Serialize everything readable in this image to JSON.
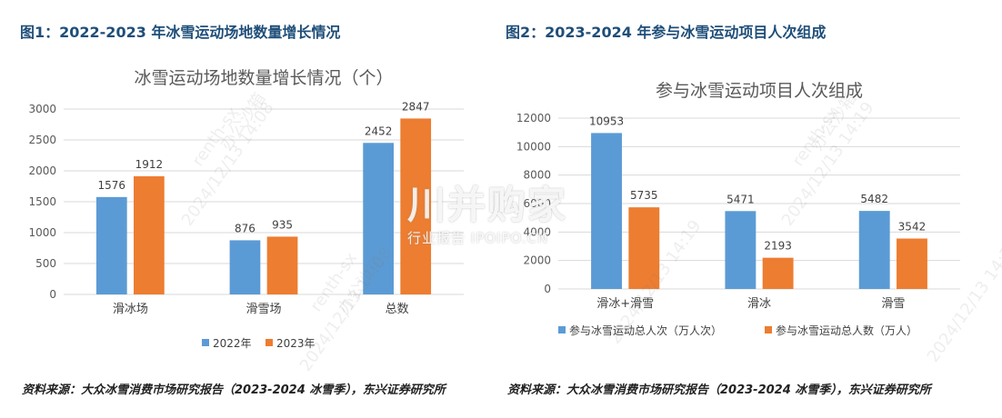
{
  "figures": {
    "fig1_title": "图1：2022-2023 年冰雪运动场地数量增长情况",
    "fig2_title": "图2：2023-2024 年参与冰雪运动项目人次组成",
    "source1": "资料来源：大众冰雪消费市场研究报告（2023-2024 冰雪季），东兴证券研究所",
    "source2": "资料来源：大众冰雪消费市场研究报告（2023-2024 冰雪季），东兴证券研究所"
  },
  "watermarks": {
    "user": "renth-sx",
    "time1": "2024/12/13 14:08",
    "time2": "2024/12/13 14:19",
    "org": "办公沙箱",
    "logo_main": "川并购家",
    "logo_sub": "行业报告 IPOIPO.CN"
  },
  "colors": {
    "series_a": "#5b9bd5",
    "series_b": "#ed7d31",
    "title": "#1f4e79",
    "grid": "#d9d9d9"
  },
  "chart_data": [
    {
      "type": "bar",
      "title": "冰雪运动场地数量增长情况（个）",
      "categories": [
        "滑冰场",
        "滑雪场",
        "总数"
      ],
      "series": [
        {
          "name": "2022年",
          "values": [
            1576,
            876,
            2452
          ]
        },
        {
          "name": "2023年",
          "values": [
            1912,
            935,
            2847
          ]
        }
      ],
      "ylim": [
        0,
        3000
      ],
      "yticks": [
        0,
        500,
        1000,
        1500,
        2000,
        2500,
        3000
      ],
      "grid": true,
      "legend": "bottom"
    },
    {
      "type": "bar",
      "title": "参与冰雪运动项目人次组成",
      "categories": [
        "滑冰+滑雪",
        "滑冰",
        "滑雪"
      ],
      "series": [
        {
          "name": "参与冰雪运动总人次（万人次）",
          "values": [
            10953,
            5471,
            5482
          ]
        },
        {
          "name": "参与冰雪运动总人数（万人）",
          "values": [
            5735,
            2193,
            3542
          ]
        }
      ],
      "ylim": [
        0,
        12000
      ],
      "yticks": [
        0,
        2000,
        4000,
        6000,
        8000,
        10000,
        12000
      ],
      "grid": true,
      "legend": "bottom"
    }
  ]
}
